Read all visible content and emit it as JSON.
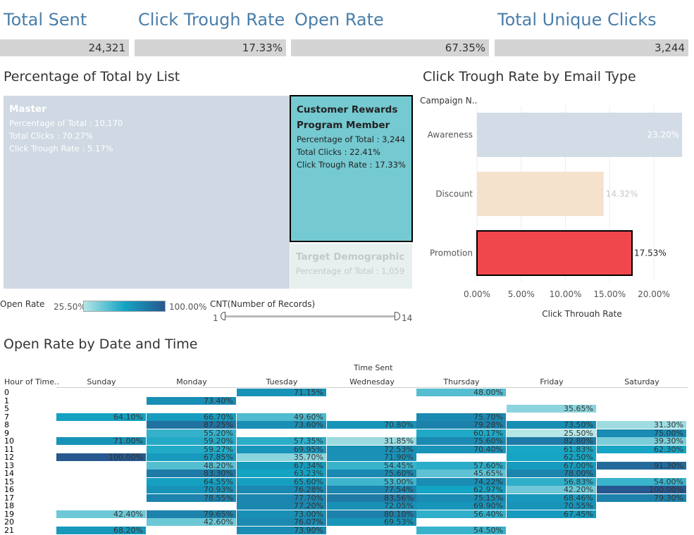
{
  "kpis": [
    {
      "title": "Total Sent",
      "value": "24,321"
    },
    {
      "title": "Click Trough Rate",
      "value": "17.33%"
    },
    {
      "title": "Open Rate",
      "value": "67.35%"
    },
    {
      "title": "Total Unique Clicks",
      "value": "3,244"
    }
  ],
  "treemap": {
    "title": "Percentage of Total by List",
    "items": [
      {
        "name": "Master",
        "lines": [
          "Percentage of Total : 10,170",
          "Total Clicks : 70.27%",
          "Click Trough Rate : 5.17%"
        ],
        "color": "#cfd8e3"
      },
      {
        "name_lines": [
          "Customer Rewards",
          "Program Member"
        ],
        "lines": [
          "Percentage of Total : 3,244",
          "Total Clicks : 22.41%",
          "Click Trough Rate : 17.33%"
        ],
        "color": "#75c9d1"
      },
      {
        "name": "Target Demographic",
        "lines": [
          "Percentage of Total : 1,059"
        ],
        "color": "#e8f0ef"
      }
    ]
  },
  "legend": {
    "open_rate_label": "Open Rate",
    "min": "25.50%",
    "max": "100.00%",
    "cnt_label": "CNT(Number of Records)",
    "cnt_min": "1",
    "cnt_max": "14"
  },
  "chart_data": {
    "type": "bar",
    "title": "Click Trough Rate by Email Type",
    "header": "Campaign N..",
    "categories": [
      "Awareness",
      "Discount",
      "Promotion"
    ],
    "values": [
      23.2,
      14.32,
      17.53
    ],
    "labels": [
      "23.20%",
      "14.32%",
      "17.53%"
    ],
    "colors": [
      "#d3dce6",
      "#f5e2cc",
      "#f0474d"
    ],
    "xlabel": "Click Through Rate",
    "xticks": [
      "0.00%",
      "5.00%",
      "10.00%",
      "15.00%",
      "20.00%"
    ],
    "xlim": [
      0,
      24
    ]
  },
  "heatmap": {
    "title": "Open Rate by Date and Time",
    "super_header": "Time Sent",
    "row_header": "Hour of Time..",
    "days": [
      "Sunday",
      "Monday",
      "Tuesday",
      "Wednesday",
      "Thursday",
      "Friday",
      "Saturday"
    ],
    "hours": [
      "0",
      "1",
      "5",
      "7",
      "8",
      "9",
      "10",
      "11",
      "12",
      "13",
      "14",
      "15",
      "16",
      "17",
      "18",
      "19",
      "20",
      "21"
    ],
    "cells": [
      [
        "",
        "",
        "71.15%",
        "",
        "48.00%",
        "",
        ""
      ],
      [
        "",
        "73.40%",
        "",
        "",
        "",
        "",
        ""
      ],
      [
        "",
        "",
        "",
        "",
        "",
        "35.65%",
        ""
      ],
      [
        "64.10%",
        "66.70%",
        "49.60%",
        "",
        "75.70%",
        "",
        ""
      ],
      [
        "",
        "87.25%",
        "73.60%",
        "70.80%",
        "79.28%",
        "73.50%",
        "31.30%"
      ],
      [
        "",
        "55.20%",
        "",
        "",
        "60.17%",
        "25.50%",
        "75.00%"
      ],
      [
        "71.00%",
        "59.20%",
        "57.35%",
        "31.85%",
        "75.60%",
        "82.80%",
        "39.30%"
      ],
      [
        "",
        "59.27%",
        "69.95%",
        "72.53%",
        "70.40%",
        "61.83%",
        "62.30%"
      ],
      [
        "100.00%",
        "67.85%",
        "35.70%",
        "71.90%",
        "",
        "62.50%",
        ""
      ],
      [
        "",
        "48.20%",
        "67.34%",
        "54.45%",
        "57.60%",
        "67.00%",
        "91.30%"
      ],
      [
        "",
        "83.30%",
        "63.23%",
        "75.60%",
        "45.65%",
        "78.00%",
        ""
      ],
      [
        "",
        "64.55%",
        "65.60%",
        "53.00%",
        "74.22%",
        "56.83%",
        "54.00%"
      ],
      [
        "",
        "70.93%",
        "76.28%",
        "77.54%",
        "62.97%",
        "42.20%",
        "100.00%"
      ],
      [
        "",
        "78.55%",
        "77.70%",
        "83.56%",
        "75.15%",
        "68.46%",
        "79.30%"
      ],
      [
        "",
        "",
        "77.20%",
        "72.05%",
        "69.90%",
        "70.55%",
        ""
      ],
      [
        "42.40%",
        "79.65%",
        "73.00%",
        "80.10%",
        "56.40%",
        "67.45%",
        ""
      ],
      [
        "",
        "42.60%",
        "76.07%",
        "69.53%",
        "",
        "",
        ""
      ],
      [
        "68.20%",
        "",
        "73.90%",
        "",
        "54.50%",
        "",
        ""
      ]
    ]
  }
}
